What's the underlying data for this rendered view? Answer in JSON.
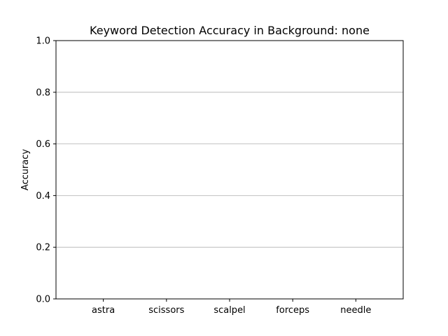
{
  "chart_data": {
    "type": "bar",
    "title": "Keyword Detection Accuracy in Background: none",
    "xlabel": "",
    "ylabel": "Accuracy",
    "categories": [
      "astra",
      "scissors",
      "scalpel",
      "forceps",
      "needle"
    ],
    "values": [
      0,
      0,
      0,
      0,
      0
    ],
    "ylim": [
      0,
      1.0
    ],
    "yticks": [
      "0.0",
      "0.2",
      "0.4",
      "0.6",
      "0.8",
      "1.0"
    ],
    "grid": "y-major",
    "colors": {
      "grid": "#b0b0b0",
      "axes": "#000000",
      "bar": "#1f77b4"
    }
  }
}
